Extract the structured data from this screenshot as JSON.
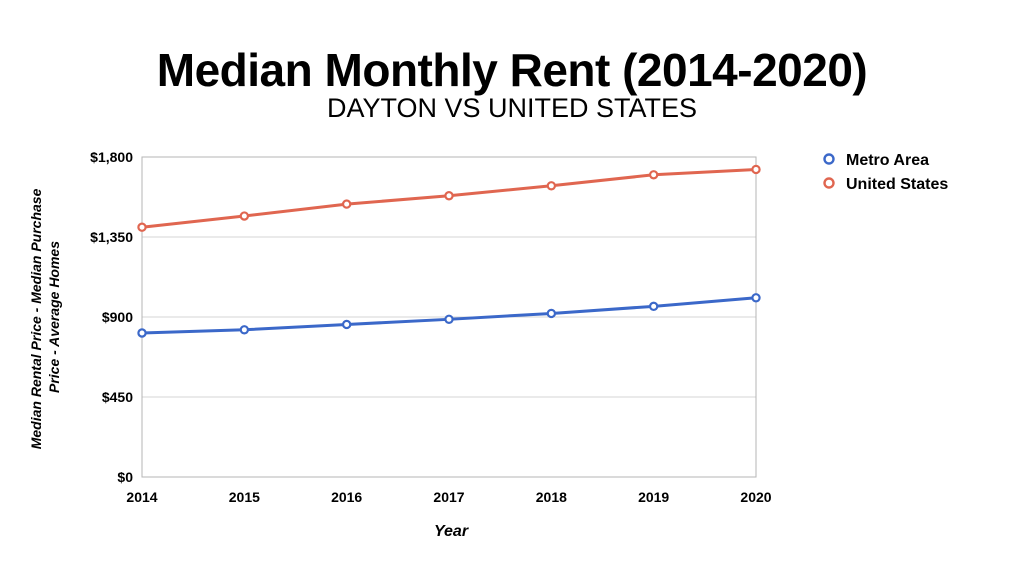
{
  "chart_data": {
    "type": "line",
    "title": "Median Monthly Rent (2014-2020)",
    "subtitle": "DAYTON VS UNITED STATES",
    "xlabel": "Year",
    "ylabel_line1": "Median Rental Price - Median Purchase",
    "ylabel_line2": "Price - Average Homes",
    "x": [
      "2014",
      "2015",
      "2016",
      "2017",
      "2018",
      "2019",
      "2020"
    ],
    "yticks": [
      "$0",
      "$450",
      "$900",
      "$1,350",
      "$1,800"
    ],
    "ylim": [
      0,
      1800
    ],
    "grid": "horizontal",
    "legend_position": "top-right",
    "series": [
      {
        "name": "Metro Area",
        "color": "#3b68c9",
        "values": [
          810,
          828,
          858,
          887,
          920,
          960,
          1008
        ]
      },
      {
        "name": "United States",
        "color": "#e06650",
        "values": [
          1405,
          1468,
          1535,
          1582,
          1638,
          1700,
          1730
        ]
      }
    ]
  }
}
